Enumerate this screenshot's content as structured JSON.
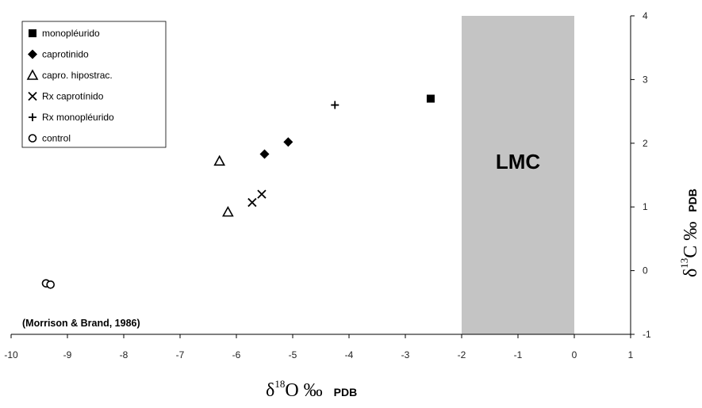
{
  "chart_data": {
    "type": "scatter",
    "title": "",
    "xlabel": {
      "main": "δ",
      "sup": "18",
      "rest": "O ‰",
      "sub": "PDB"
    },
    "ylabel": {
      "main": "δ",
      "sup": "13",
      "rest": "C ‰",
      "sub": "PDB"
    },
    "xlim": [
      -10,
      1
    ],
    "ylim": [
      -1,
      4
    ],
    "x_ticks": [
      "-10",
      "-9",
      "-8",
      "-7",
      "-6",
      "-5",
      "-4",
      "-3",
      "-2",
      "-1",
      "0",
      "1"
    ],
    "y_ticks": [
      "-1",
      "0",
      "1",
      "2",
      "3",
      "4"
    ],
    "grid": false,
    "legend_position": "top-left",
    "shaded_region": {
      "label": "LMC",
      "x_from": -2,
      "x_to": 0,
      "color": "#c4c4c4"
    },
    "annotation": "(Morrison & Brand, 1986)",
    "series": [
      {
        "name": "monopléurido",
        "marker": "square",
        "points": [
          [
            -2.55,
            2.7
          ]
        ]
      },
      {
        "name": "caprotinido",
        "marker": "diamond",
        "points": [
          [
            -5.5,
            1.83
          ],
          [
            -5.08,
            2.02
          ]
        ]
      },
      {
        "name": "capro. hipostrac.",
        "marker": "triangle-open",
        "points": [
          [
            -6.3,
            1.72
          ],
          [
            -6.15,
            0.92
          ]
        ]
      },
      {
        "name": "Rx caprotínido",
        "marker": "x",
        "points": [
          [
            -5.72,
            1.07
          ],
          [
            -5.55,
            1.2
          ]
        ]
      },
      {
        "name": "Rx monopléurido",
        "marker": "plus",
        "points": [
          [
            -4.25,
            2.6
          ]
        ]
      },
      {
        "name": "control",
        "marker": "circle-open",
        "points": [
          [
            -9.38,
            -0.2
          ],
          [
            -9.3,
            -0.22
          ]
        ]
      }
    ]
  }
}
